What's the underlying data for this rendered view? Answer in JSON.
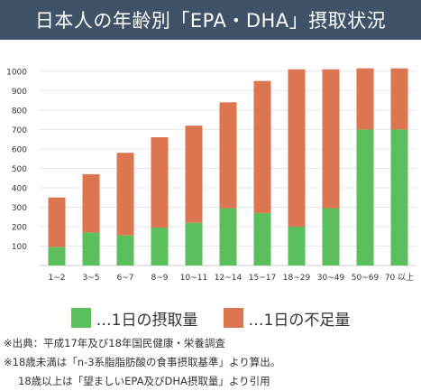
{
  "header": {
    "title": "日本人の年齢別「EPA・DHA」摂取状況"
  },
  "colors": {
    "header_bg": "#3f5268",
    "intake": "#5bbf5e",
    "shortfall": "#dc7650",
    "grid": "#e8e8e8"
  },
  "legend": [
    {
      "label": "…1日の摂取量",
      "color": "#5bbf5e"
    },
    {
      "label": "…1日の不足量",
      "color": "#dc7650"
    }
  ],
  "chart_data": {
    "type": "bar",
    "stacked": true,
    "categories": [
      "1~2",
      "3~5",
      "6~7",
      "8~9",
      "10~11",
      "12~14",
      "15~17",
      "18~29",
      "30~49",
      "50~69",
      "70 以上"
    ],
    "series": [
      {
        "name": "1日の摂取量",
        "color": "#5bbf5e",
        "values": [
          95,
          170,
          155,
          195,
          220,
          295,
          270,
          200,
          295,
          700,
          700
        ]
      },
      {
        "name": "1日の不足量",
        "color": "#dc7650",
        "values": [
          255,
          300,
          425,
          465,
          500,
          545,
          680,
          810,
          715,
          315,
          315
        ]
      }
    ],
    "yticks": [
      100,
      200,
      300,
      400,
      500,
      600,
      700,
      800,
      900,
      1000
    ],
    "ylim": [
      0,
      1060
    ],
    "grid": true,
    "xlabel": "",
    "ylabel": "",
    "title": ""
  },
  "notes": [
    "※出典：平成17年及び18年国民健康・栄養調査",
    "※18歳未満は「n-3系脂脂肪酸の食事摂取基準」より算出。",
    "18歳以上は「望ましいEPA及びDHA摂取量」より引用"
  ]
}
